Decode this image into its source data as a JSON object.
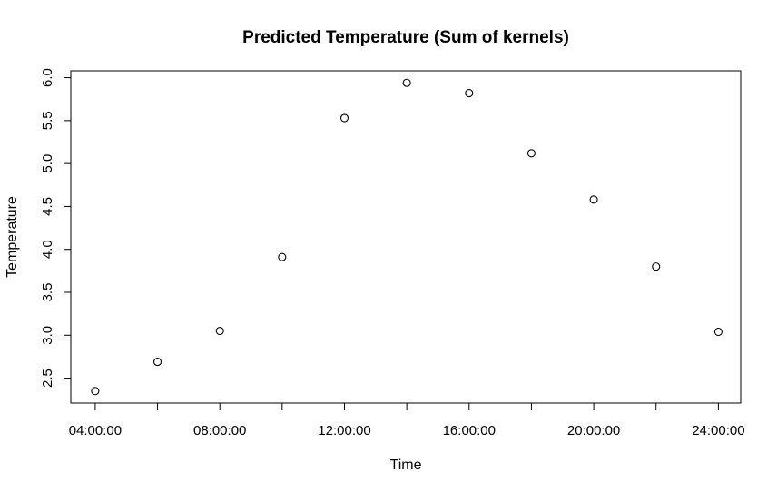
{
  "chart_data": {
    "type": "scatter",
    "title": "Predicted Temperature (Sum of kernels)",
    "xlabel": "Time",
    "ylabel": "Temperature",
    "x": [
      "04:00:00",
      "06:00:00",
      "08:00:00",
      "10:00:00",
      "12:00:00",
      "14:00:00",
      "16:00:00",
      "18:00:00",
      "20:00:00",
      "22:00:00",
      "24:00:00"
    ],
    "y": [
      2.35,
      2.69,
      3.05,
      3.91,
      5.53,
      5.94,
      5.82,
      5.12,
      4.58,
      3.8,
      3.04
    ],
    "xlim": [
      "03:13:00",
      "24:43:00"
    ],
    "ylim": [
      2.21,
      6.08
    ],
    "x_ticks": [
      "04:00:00",
      "06:00:00",
      "08:00:00",
      "10:00:00",
      "12:00:00",
      "14:00:00",
      "16:00:00",
      "18:00:00",
      "20:00:00",
      "22:00:00",
      "24:00:00"
    ],
    "x_tick_labels": [
      "04:00:00",
      "",
      "08:00:00",
      "",
      "12:00:00",
      "",
      "16:00:00",
      "",
      "20:00:00",
      "",
      "24:00:00"
    ],
    "y_ticks": [
      2.5,
      3.0,
      3.5,
      4.0,
      4.5,
      5.0,
      5.5,
      6.0
    ],
    "y_tick_labels": [
      "2.5",
      "3.0",
      "3.5",
      "4.0",
      "4.5",
      "5.0",
      "5.5",
      "6.0"
    ],
    "marker": "open-circle",
    "grid": false,
    "legend": "none"
  }
}
